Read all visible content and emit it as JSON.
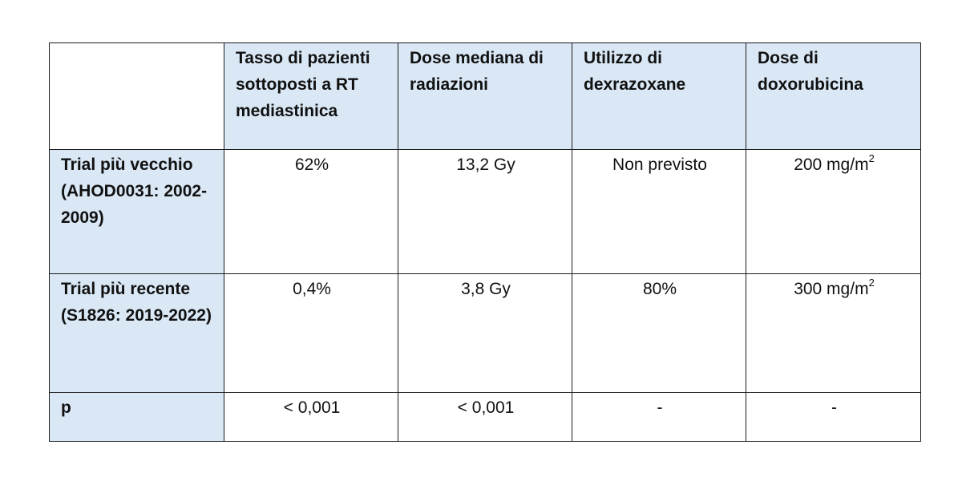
{
  "table": {
    "column_headers": [
      "",
      "Tasso di pazienti sottoposti a RT mediastinica",
      "Dose mediana di radiazioni",
      "Utilizzo di dexrazoxane",
      "Dose di doxorubicina"
    ],
    "rows": [
      {
        "label": "Trial più vecchio (AHOD0031: 2002-2009)",
        "rt_rate": "62%",
        "median_dose": "13,2 Gy",
        "dexrazoxane": "Non previsto",
        "doxorubicin": "200 mg/m",
        "doxorubicin_exp": "2"
      },
      {
        "label": "Trial più recente (S1826: 2019-2022)",
        "rt_rate": "0,4%",
        "median_dose": "3,8 Gy",
        "dexrazoxane": "80%",
        "doxorubicin": "300 mg/m",
        "doxorubicin_exp": "2"
      },
      {
        "label": "p",
        "rt_rate": "< 0,001",
        "median_dose": "< 0,001",
        "dexrazoxane": "-",
        "doxorubicin": "-"
      }
    ]
  },
  "colors": {
    "header_fill": "#dae8f6",
    "border": "#1a1a1a",
    "background": "#ffffff"
  }
}
